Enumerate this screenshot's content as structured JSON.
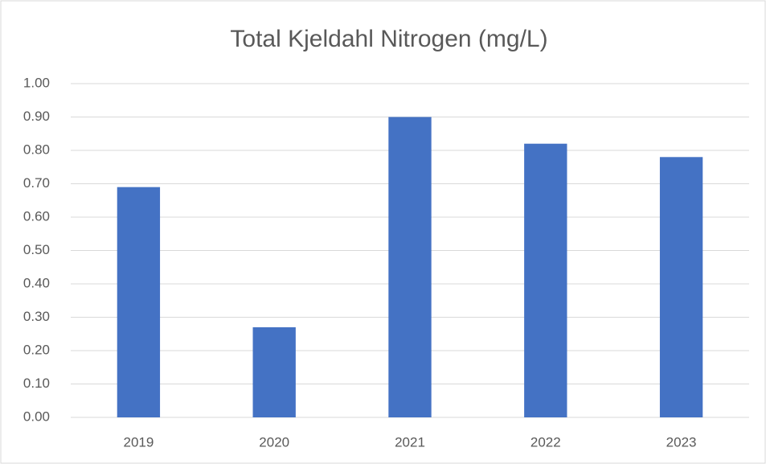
{
  "chart_data": {
    "type": "bar",
    "title": "Total Kjeldahl Nitrogen (mg/L)",
    "categories": [
      "2019",
      "2020",
      "2021",
      "2022",
      "2023"
    ],
    "values": [
      0.69,
      0.27,
      0.9,
      0.82,
      0.78
    ],
    "color": "#4472c4",
    "ylim": [
      0,
      1
    ],
    "yticks": [
      {
        "value": 0,
        "label": "0.00"
      },
      {
        "value": 0.1,
        "label": "0.10"
      },
      {
        "value": 0.2,
        "label": "0.20"
      },
      {
        "value": 0.3,
        "label": "0.30"
      },
      {
        "value": 0.4,
        "label": "0.40"
      },
      {
        "value": 0.5,
        "label": "0.50"
      },
      {
        "value": 0.6,
        "label": "0.60"
      },
      {
        "value": 0.7,
        "label": "0.70"
      },
      {
        "value": 0.8,
        "label": "0.80"
      },
      {
        "value": 0.9,
        "label": "0.90"
      },
      {
        "value": 1,
        "label": "1.00"
      }
    ],
    "grid": true
  }
}
